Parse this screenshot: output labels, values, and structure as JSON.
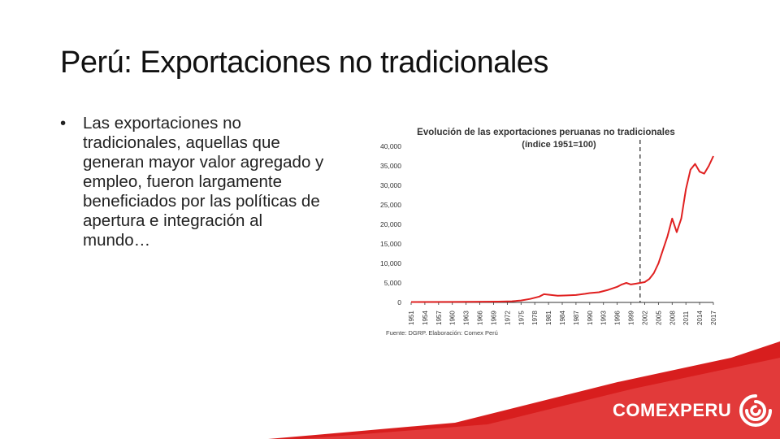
{
  "slide": {
    "title": "Perú: Exportaciones no tradicionales",
    "bullet_marker": "•",
    "bullet_text": "Las exportaciones no tradicionales, aquellas que generan mayor valor agregado y empleo, fueron largamente beneficiados por las políticas de apertura e integración al mundo…",
    "bullet_lines": [
      "Las exportaciones no",
      "tradicionales, aquellas que",
      "generan mayor valor agregado y",
      "empleo, fueron largamente",
      "beneficiados por las políticas de",
      "apertura e integración al",
      "mundo…"
    ],
    "source_note": "Fuente: DGRP. Elaboración: Comex Perú",
    "logo_text": "COMEXPERU",
    "logo_icon": "comexperu-swirl-icon",
    "colors": {
      "line": "#e02020",
      "accent_red": "#d81e1e",
      "text": "#222222"
    }
  },
  "chart_data": {
    "type": "line",
    "title": "Evolución de las exportaciones peruanas no tradicionales",
    "subtitle": "(índice 1951=100)",
    "xlabel": "",
    "ylabel": "",
    "ylim": [
      0,
      40000
    ],
    "yticks": [
      0,
      5000,
      10000,
      15000,
      20000,
      25000,
      30000,
      35000,
      40000
    ],
    "ytick_labels": [
      "0",
      "5,000",
      "10,000",
      "15,000",
      "20,000",
      "25,000",
      "30,000",
      "35,000",
      "40,000"
    ],
    "xlim": [
      1951,
      2017
    ],
    "xticks": [
      1951,
      1954,
      1957,
      1960,
      1963,
      1966,
      1969,
      1972,
      1975,
      1978,
      1981,
      1984,
      1987,
      1990,
      1993,
      1996,
      1999,
      2002,
      2005,
      2008,
      2011,
      2014,
      2017
    ],
    "vline_x": 2001,
    "grid": false,
    "legend": "none",
    "series": [
      {
        "x": [
          1951,
          1960,
          1970,
          1973,
          1975,
          1977,
          1979,
          1980,
          1983,
          1985,
          1987,
          1989,
          1990,
          1992,
          1994,
          1996,
          1997,
          1998,
          1999,
          2000,
          2001,
          2002,
          2003,
          2004,
          2005,
          2006,
          2007,
          2008,
          2009,
          2010,
          2011,
          2012,
          2013,
          2014,
          2015,
          2016,
          2017
        ],
        "values": [
          100,
          130,
          200,
          300,
          500,
          900,
          1500,
          2100,
          1700,
          1800,
          1900,
          2200,
          2400,
          2600,
          3200,
          4000,
          4600,
          5000,
          4600,
          4800,
          5000,
          5200,
          6000,
          7500,
          10000,
          13500,
          17000,
          21500,
          18000,
          21500,
          29000,
          34000,
          35500,
          33500,
          33000,
          35000,
          37500
        ]
      }
    ]
  }
}
